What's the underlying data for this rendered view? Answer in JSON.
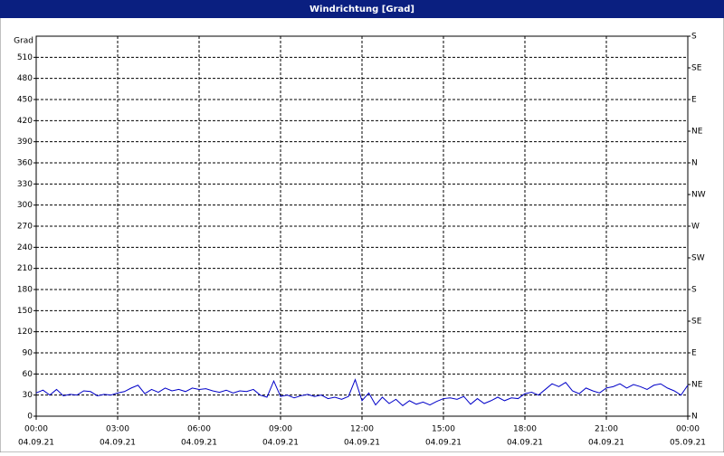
{
  "chart_data": {
    "type": "line",
    "title": "Windrichtung [Grad]",
    "ylabel": "Grad",
    "color": "#0000c8",
    "grid": true,
    "x": [
      0,
      0.25,
      0.5,
      0.75,
      1,
      1.25,
      1.5,
      1.75,
      2,
      2.25,
      2.5,
      2.75,
      3,
      3.25,
      3.5,
      3.75,
      4,
      4.25,
      4.5,
      4.75,
      5,
      5.25,
      5.5,
      5.75,
      6,
      6.25,
      6.5,
      6.75,
      7,
      7.25,
      7.5,
      7.75,
      8,
      8.25,
      8.5,
      8.75,
      9,
      9.25,
      9.5,
      9.75,
      10,
      10.25,
      10.5,
      10.75,
      11,
      11.25,
      11.5,
      11.75,
      12,
      12.25,
      12.5,
      12.75,
      13,
      13.25,
      13.5,
      13.75,
      14,
      14.25,
      14.5,
      14.75,
      15,
      15.25,
      15.5,
      15.75,
      16,
      16.25,
      16.5,
      16.75,
      17,
      17.25,
      17.5,
      17.75,
      18,
      18.25,
      18.5,
      18.75,
      19,
      19.25,
      19.5,
      19.75,
      20,
      20.25,
      20.5,
      20.75,
      21,
      21.25,
      21.5,
      21.75,
      22,
      22.25,
      22.5,
      22.75,
      23,
      23.25,
      23.5,
      23.75,
      24
    ],
    "values": [
      33,
      37,
      30,
      38,
      29,
      31,
      30,
      36,
      35,
      29,
      31,
      30,
      33,
      35,
      40,
      44,
      32,
      38,
      34,
      40,
      36,
      38,
      35,
      40,
      38,
      39,
      36,
      34,
      37,
      33,
      36,
      35,
      38,
      30,
      27,
      50,
      28,
      30,
      26,
      29,
      31,
      28,
      30,
      25,
      27,
      24,
      28,
      52,
      22,
      33,
      16,
      27,
      18,
      24,
      15,
      22,
      17,
      20,
      16,
      21,
      25,
      26,
      24,
      28,
      17,
      25,
      18,
      22,
      27,
      22,
      26,
      25,
      32,
      34,
      30,
      38,
      46,
      42,
      48,
      36,
      32,
      40,
      36,
      33,
      40,
      42,
      46,
      40,
      45,
      42,
      38,
      44,
      46,
      40,
      36,
      30,
      44
    ],
    "xlim": [
      0,
      24
    ],
    "xticks": [
      {
        "value": 0,
        "label": "00:00"
      },
      {
        "value": 3,
        "label": "03:00"
      },
      {
        "value": 6,
        "label": "06:00"
      },
      {
        "value": 9,
        "label": "09:00"
      },
      {
        "value": 12,
        "label": "12:00"
      },
      {
        "value": 15,
        "label": "15:00"
      },
      {
        "value": 18,
        "label": "18:00"
      },
      {
        "value": 21,
        "label": "21:00"
      },
      {
        "value": 24,
        "label": "00:00"
      }
    ],
    "xtick_dates": [
      "04.09.21",
      "04.09.21",
      "04.09.21",
      "04.09.21",
      "04.09.21",
      "04.09.21",
      "04.09.21",
      "04.09.21",
      "05.09.21"
    ],
    "ylim": [
      0,
      540
    ],
    "yticks": [
      0,
      30,
      60,
      90,
      120,
      150,
      180,
      210,
      240,
      270,
      300,
      330,
      360,
      390,
      420,
      450,
      480,
      510
    ],
    "y2lim": [
      0,
      540
    ],
    "y2ticks": [
      {
        "value": 0,
        "label": "N"
      },
      {
        "value": 45,
        "label": "NE"
      },
      {
        "value": 90,
        "label": "E"
      },
      {
        "value": 135,
        "label": "SE"
      },
      {
        "value": 180,
        "label": "S"
      },
      {
        "value": 225,
        "label": "SW"
      },
      {
        "value": 270,
        "label": "W"
      },
      {
        "value": 315,
        "label": "NW"
      },
      {
        "value": 360,
        "label": "N"
      },
      {
        "value": 405,
        "label": "NE"
      },
      {
        "value": 450,
        "label": "E"
      },
      {
        "value": 495,
        "label": "SE"
      },
      {
        "value": 540,
        "label": "S"
      }
    ]
  }
}
